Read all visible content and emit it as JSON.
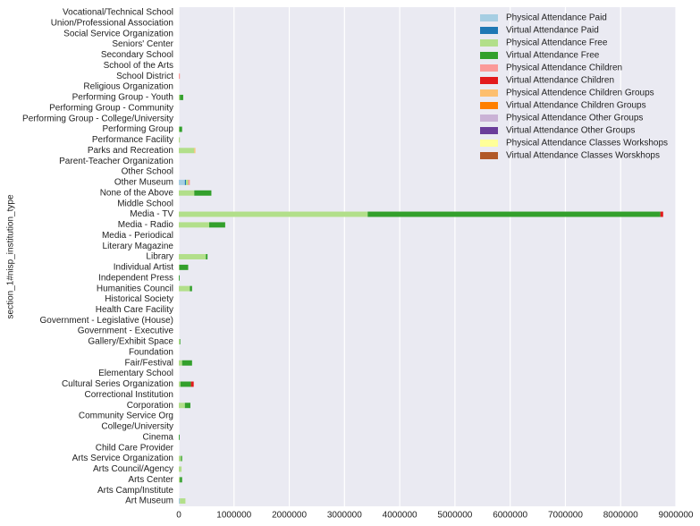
{
  "chart_data": {
    "type": "stacked-barh",
    "ylabel": "section_1#nisp_institution_type",
    "categories": [
      "Art Museum",
      "Arts Camp/Institute",
      "Arts Center",
      "Arts Council/Agency",
      "Arts Service Organization",
      "Child Care Provider",
      "Cinema",
      "College/University",
      "Community Service Org",
      "Corporation",
      "Correctional Institution",
      "Cultural Series Organization",
      "Elementary School",
      "Fair/Festival",
      "Foundation",
      "Gallery/Exhibit Space",
      "Government - Executive",
      "Government - Legislative (House)",
      "Health Care Facility",
      "Historical Society",
      "Humanities Council",
      "Independent Press",
      "Individual Artist",
      "Library",
      "Literary Magazine",
      "Media - Periodical",
      "Media - Radio",
      "Media - TV",
      "Middle School",
      "None of the Above",
      "Other Museum",
      "Other School",
      "Parent-Teacher Organization",
      "Parks and Recreation",
      "Performance Facility",
      "Performing Group",
      "Performing Group - College/University",
      "Performing Group - Community",
      "Performing Group - Youth",
      "Religious Organization",
      "School District",
      "School of the Arts",
      "Secondary School",
      "Seniors' Center",
      "Social Service Organization",
      "Union/Professional Association",
      "Vocational/Technical School"
    ],
    "series": [
      {
        "name": "Physical Attendance Paid",
        "color": "#a6cee3",
        "values": [
          20000,
          0,
          0,
          0,
          0,
          0,
          0,
          0,
          0,
          0,
          0,
          0,
          0,
          0,
          0,
          0,
          0,
          0,
          0,
          0,
          0,
          0,
          0,
          0,
          0,
          0,
          0,
          0,
          0,
          0,
          110000,
          0,
          0,
          0,
          0,
          0,
          0,
          0,
          0,
          0,
          0,
          0,
          0,
          0,
          0,
          0,
          0
        ]
      },
      {
        "name": "Virtual Attendance Paid",
        "color": "#1f78b4",
        "values": [
          0,
          0,
          0,
          0,
          0,
          0,
          0,
          0,
          0,
          0,
          0,
          0,
          0,
          0,
          0,
          0,
          0,
          0,
          0,
          0,
          0,
          0,
          0,
          0,
          0,
          0,
          0,
          0,
          0,
          0,
          20000,
          0,
          0,
          0,
          0,
          0,
          0,
          0,
          0,
          0,
          0,
          0,
          0,
          0,
          0,
          0,
          0
        ]
      },
      {
        "name": "Physical Attendance Free",
        "color": "#b2df8a",
        "values": [
          100000,
          0,
          20000,
          50000,
          40000,
          0,
          0,
          0,
          0,
          110000,
          0,
          30000,
          0,
          60000,
          0,
          20000,
          0,
          0,
          0,
          0,
          200000,
          0,
          10000,
          490000,
          0,
          0,
          550000,
          3420000,
          0,
          280000,
          40000,
          0,
          0,
          280000,
          20000,
          10000,
          0,
          0,
          20000,
          0,
          0,
          0,
          0,
          0,
          0,
          0,
          0
        ]
      },
      {
        "name": "Virtual Attendance Free",
        "color": "#33a02c",
        "values": [
          0,
          0,
          40000,
          0,
          20000,
          0,
          15000,
          0,
          0,
          100000,
          0,
          190000,
          0,
          180000,
          0,
          10000,
          0,
          0,
          0,
          0,
          40000,
          15000,
          160000,
          30000,
          0,
          0,
          290000,
          5300000,
          0,
          310000,
          0,
          0,
          0,
          0,
          0,
          50000,
          0,
          0,
          60000,
          0,
          0,
          0,
          0,
          0,
          0,
          0,
          0
        ]
      },
      {
        "name": "Physical Attendance Children",
        "color": "#fb9a99",
        "values": [
          0,
          0,
          0,
          0,
          0,
          0,
          0,
          0,
          0,
          0,
          0,
          0,
          0,
          0,
          0,
          0,
          0,
          0,
          0,
          0,
          0,
          0,
          0,
          0,
          0,
          0,
          0,
          0,
          0,
          0,
          30000,
          0,
          0,
          0,
          0,
          0,
          0,
          0,
          0,
          0,
          20000,
          0,
          0,
          0,
          0,
          0,
          0
        ]
      },
      {
        "name": "Virtual Attendance Children",
        "color": "#e31a1c",
        "values": [
          0,
          0,
          0,
          0,
          0,
          0,
          0,
          0,
          0,
          0,
          0,
          50000,
          0,
          0,
          0,
          0,
          0,
          0,
          0,
          0,
          0,
          0,
          0,
          0,
          0,
          0,
          0,
          50000,
          0,
          0,
          0,
          0,
          0,
          0,
          0,
          0,
          0,
          0,
          0,
          0,
          0,
          0,
          0,
          0,
          0,
          0,
          0
        ]
      },
      {
        "name": "Physical Attendence Children Groups",
        "color": "#fdbf6f",
        "values": [
          0,
          0,
          0,
          0,
          0,
          0,
          0,
          0,
          0,
          0,
          0,
          0,
          0,
          0,
          0,
          0,
          0,
          0,
          0,
          0,
          0,
          0,
          0,
          0,
          0,
          0,
          0,
          0,
          0,
          0,
          0,
          0,
          0,
          20000,
          0,
          0,
          0,
          0,
          0,
          0,
          0,
          0,
          0,
          0,
          0,
          0,
          0
        ]
      },
      {
        "name": "Virtual Attendance Children Groups",
        "color": "#ff7f00",
        "values": [
          0,
          0,
          0,
          0,
          0,
          0,
          0,
          0,
          0,
          0,
          0,
          0,
          0,
          0,
          0,
          0,
          0,
          0,
          0,
          0,
          0,
          0,
          0,
          0,
          0,
          0,
          0,
          0,
          0,
          0,
          0,
          0,
          0,
          0,
          0,
          0,
          0,
          0,
          0,
          0,
          0,
          0,
          0,
          0,
          0,
          0,
          0
        ]
      },
      {
        "name": "Physical Attendance Other Groups",
        "color": "#cab2d6",
        "values": [
          0,
          0,
          0,
          0,
          0,
          0,
          0,
          0,
          0,
          0,
          0,
          0,
          0,
          0,
          0,
          0,
          0,
          0,
          0,
          0,
          0,
          0,
          0,
          0,
          0,
          0,
          0,
          0,
          0,
          0,
          0,
          0,
          0,
          0,
          0,
          0,
          0,
          0,
          0,
          0,
          0,
          0,
          0,
          0,
          0,
          0,
          0
        ]
      },
      {
        "name": "Virtual Attendance Other Groups",
        "color": "#6a3d9a",
        "values": [
          0,
          0,
          0,
          0,
          0,
          0,
          0,
          0,
          0,
          0,
          0,
          0,
          0,
          0,
          0,
          0,
          0,
          0,
          0,
          0,
          0,
          0,
          0,
          0,
          0,
          0,
          0,
          0,
          0,
          0,
          0,
          0,
          0,
          0,
          0,
          0,
          0,
          0,
          0,
          0,
          0,
          0,
          0,
          0,
          0,
          0,
          0
        ]
      },
      {
        "name": "Physical Attendance Classes Workshops",
        "color": "#ffff99",
        "values": [
          0,
          0,
          0,
          0,
          0,
          0,
          0,
          0,
          0,
          0,
          0,
          0,
          0,
          0,
          0,
          0,
          0,
          0,
          0,
          0,
          0,
          0,
          0,
          0,
          0,
          0,
          0,
          0,
          0,
          0,
          0,
          0,
          0,
          0,
          0,
          0,
          0,
          0,
          0,
          0,
          0,
          0,
          0,
          0,
          0,
          0,
          0
        ]
      },
      {
        "name": "Virtual Attendance Classes Worskhops",
        "color": "#b15928",
        "values": [
          0,
          0,
          0,
          0,
          0,
          0,
          0,
          0,
          0,
          0,
          0,
          0,
          0,
          0,
          0,
          0,
          0,
          0,
          0,
          0,
          0,
          0,
          0,
          0,
          0,
          0,
          0,
          0,
          0,
          0,
          0,
          0,
          0,
          0,
          0,
          0,
          0,
          0,
          0,
          0,
          0,
          0,
          0,
          0,
          0,
          0,
          0
        ]
      }
    ],
    "xlim": [
      0,
      9000000
    ],
    "xticks": [
      0,
      1000000,
      2000000,
      3000000,
      4000000,
      5000000,
      6000000,
      7000000,
      8000000,
      9000000
    ],
    "grid": true,
    "legend": "upper right"
  }
}
